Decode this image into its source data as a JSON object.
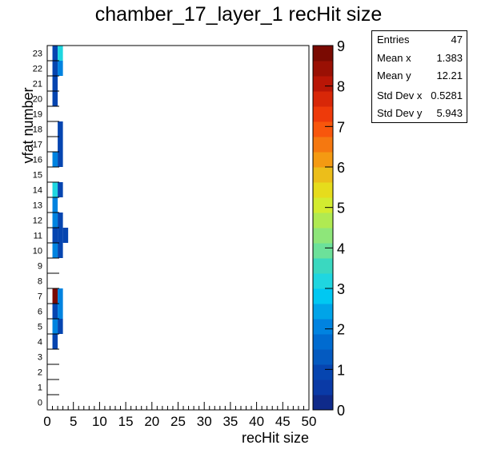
{
  "chart_data": {
    "type": "heatmap",
    "title": "chamber_17_layer_1 recHit size",
    "xlabel": "recHit size",
    "ylabel": "vfat number",
    "xlim": [
      0,
      50
    ],
    "ylim": [
      0,
      24
    ],
    "x_ticks": [
      0,
      5,
      10,
      15,
      20,
      25,
      30,
      35,
      40,
      45,
      50
    ],
    "y_ticks": [
      0,
      1,
      2,
      3,
      4,
      5,
      6,
      7,
      8,
      9,
      10,
      11,
      12,
      13,
      14,
      15,
      16,
      17,
      18,
      19,
      20,
      21,
      22,
      23
    ],
    "colorbar": {
      "min": 0,
      "max": 9,
      "ticks": [
        0,
        1,
        2,
        3,
        4,
        5,
        6,
        7,
        8,
        9
      ]
    },
    "cells": [
      {
        "x": 1,
        "y": 23,
        "count": 1
      },
      {
        "x": 2,
        "y": 23,
        "count": 3
      },
      {
        "x": 1,
        "y": 22,
        "count": 1
      },
      {
        "x": 2,
        "y": 22,
        "count": 2
      },
      {
        "x": 1,
        "y": 21,
        "count": 1
      },
      {
        "x": 1,
        "y": 20,
        "count": 1
      },
      {
        "x": 2,
        "y": 18,
        "count": 1
      },
      {
        "x": 2,
        "y": 17,
        "count": 1
      },
      {
        "x": 1,
        "y": 16,
        "count": 2
      },
      {
        "x": 2,
        "y": 16,
        "count": 1
      },
      {
        "x": 1,
        "y": 14,
        "count": 3
      },
      {
        "x": 2,
        "y": 14,
        "count": 1
      },
      {
        "x": 1,
        "y": 13,
        "count": 2
      },
      {
        "x": 1,
        "y": 12,
        "count": 2
      },
      {
        "x": 2,
        "y": 12,
        "count": 1
      },
      {
        "x": 1,
        "y": 11,
        "count": 1
      },
      {
        "x": 2,
        "y": 11,
        "count": 1
      },
      {
        "x": 3,
        "y": 11,
        "count": 1
      },
      {
        "x": 1,
        "y": 10,
        "count": 2
      },
      {
        "x": 2,
        "y": 10,
        "count": 1
      },
      {
        "x": 1,
        "y": 7,
        "count": 9
      },
      {
        "x": 2,
        "y": 7,
        "count": 2
      },
      {
        "x": 1,
        "y": 6,
        "count": 1
      },
      {
        "x": 2,
        "y": 6,
        "count": 2
      },
      {
        "x": 1,
        "y": 5,
        "count": 2
      },
      {
        "x": 2,
        "y": 5,
        "count": 1
      },
      {
        "x": 1,
        "y": 4,
        "count": 1
      }
    ]
  },
  "stats": [
    {
      "label": "Entries",
      "value": "47"
    },
    {
      "label": "Mean x",
      "value": "1.383"
    },
    {
      "label": "Mean y",
      "value": "12.21"
    },
    {
      "label": "Std Dev x",
      "value": "0.5281"
    },
    {
      "label": "Std Dev y",
      "value": "5.943"
    }
  ]
}
